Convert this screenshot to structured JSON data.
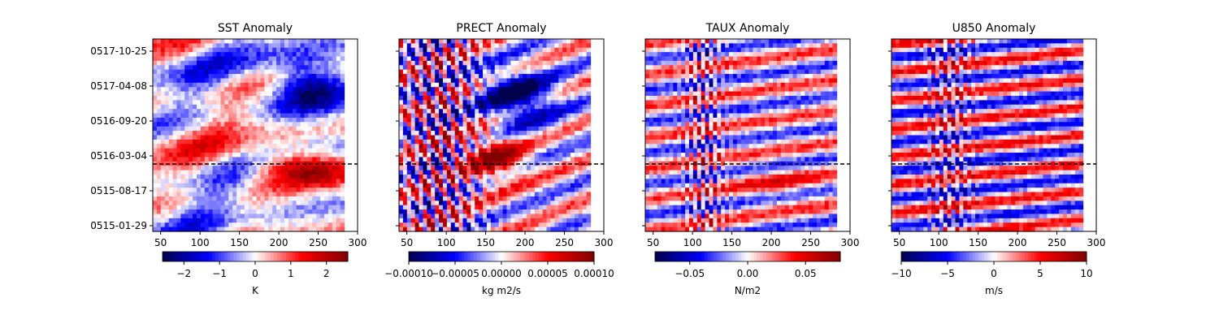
{
  "chart_data": [
    {
      "type": "heatmap",
      "title": "SST Anomaly",
      "xlim": [
        40,
        300
      ],
      "x_ticks": [
        "50",
        "100",
        "150",
        "200",
        "250",
        "300"
      ],
      "y_ticks": [
        "0517-10-25",
        "0517-04-08",
        "0516-09-20",
        "0516-03-04",
        "0515-08-17",
        "0515-01-29"
      ],
      "show_y_ticklabels": true,
      "colorbar": {
        "vmin": -2.6,
        "vmax": 2.6,
        "ticks": [
          "−2",
          "−1",
          "0",
          "1",
          "2"
        ],
        "label": "K"
      },
      "reference_line": {
        "style": "dashed",
        "between": [
          "0516-03-04",
          "0515-08-17"
        ]
      }
    },
    {
      "type": "heatmap",
      "title": "PRECT Anomaly",
      "xlim": [
        40,
        300
      ],
      "x_ticks": [
        "50",
        "100",
        "150",
        "200",
        "250",
        "300"
      ],
      "y_ticks": [
        "0517-10-25",
        "0517-04-08",
        "0516-09-20",
        "0516-03-04",
        "0515-08-17",
        "0515-01-29"
      ],
      "show_y_ticklabels": false,
      "colorbar": {
        "vmin": -0.0001,
        "vmax": 0.0001,
        "ticks": [
          "−0.00010",
          "−0.00005",
          "0.00000",
          "0.00005",
          "0.00010"
        ],
        "label": "kg m2/s"
      },
      "reference_line": {
        "style": "dashed",
        "between": [
          "0516-03-04",
          "0515-08-17"
        ]
      }
    },
    {
      "type": "heatmap",
      "title": "TAUX Anomaly",
      "xlim": [
        40,
        300
      ],
      "x_ticks": [
        "50",
        "100",
        "150",
        "200",
        "250",
        "300"
      ],
      "y_ticks": [
        "0517-10-25",
        "0517-04-08",
        "0516-09-20",
        "0516-03-04",
        "0515-08-17",
        "0515-01-29"
      ],
      "show_y_ticklabels": false,
      "colorbar": {
        "vmin": -0.08,
        "vmax": 0.08,
        "ticks": [
          "−0.05",
          "0.00",
          "0.05"
        ],
        "label": "N/m2"
      },
      "reference_line": {
        "style": "dashed",
        "between": [
          "0516-03-04",
          "0515-08-17"
        ]
      }
    },
    {
      "type": "heatmap",
      "title": "U850 Anomaly",
      "xlim": [
        40,
        300
      ],
      "x_ticks": [
        "50",
        "100",
        "150",
        "200",
        "250",
        "300"
      ],
      "y_ticks": [
        "0517-10-25",
        "0517-04-08",
        "0516-09-20",
        "0516-03-04",
        "0515-08-17",
        "0515-01-29"
      ],
      "show_y_ticklabels": false,
      "colorbar": {
        "vmin": -10,
        "vmax": 10,
        "ticks": [
          "−10",
          "−5",
          "0",
          "5",
          "10"
        ],
        "label": "m/s"
      },
      "reference_line": {
        "style": "dashed",
        "between": [
          "0516-03-04",
          "0515-08-17"
        ]
      }
    }
  ],
  "colormap": "seismic"
}
